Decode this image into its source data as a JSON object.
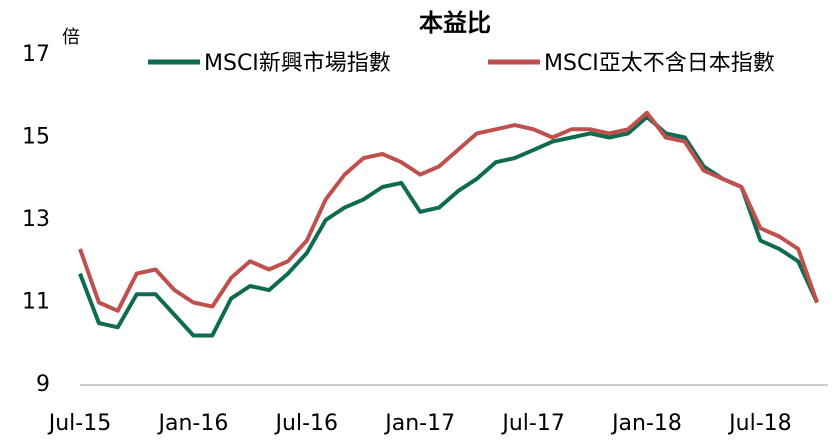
{
  "chart_data": {
    "type": "line",
    "title": "本益比",
    "y_label": "倍",
    "categories": [
      "Jul-15",
      null,
      null,
      null,
      null,
      null,
      "Jan-16",
      null,
      null,
      null,
      null,
      null,
      "Jul-16",
      null,
      null,
      null,
      null,
      null,
      "Jan-17",
      null,
      null,
      null,
      null,
      null,
      "Jul-17",
      null,
      null,
      null,
      null,
      null,
      "Jan-18",
      null,
      null,
      null,
      null,
      null,
      "Jul-18",
      null,
      null,
      null
    ],
    "series": [
      {
        "name": "MSCI新興市場指數",
        "color": "#0f6b4f",
        "values": [
          11.7,
          10.5,
          10.4,
          11.2,
          11.2,
          10.7,
          10.2,
          10.2,
          11.1,
          11.4,
          11.3,
          11.7,
          12.2,
          13.0,
          13.3,
          13.5,
          13.8,
          13.9,
          13.2,
          13.3,
          13.7,
          14.0,
          14.4,
          14.5,
          14.7,
          14.9,
          15.0,
          15.1,
          15.0,
          15.1,
          15.5,
          15.1,
          15.0,
          14.3,
          14.0,
          13.8,
          12.5,
          12.3,
          12.0,
          11.0
        ]
      },
      {
        "name": "MSCI亞太不含日本指數",
        "color": "#c0504d",
        "values": [
          12.3,
          11.0,
          10.8,
          11.7,
          11.8,
          11.3,
          11.0,
          10.9,
          11.6,
          12.0,
          11.8,
          12.0,
          12.5,
          13.5,
          14.1,
          14.5,
          14.6,
          14.4,
          14.1,
          14.3,
          14.7,
          15.1,
          15.2,
          15.3,
          15.2,
          15.0,
          15.2,
          15.2,
          15.1,
          15.2,
          15.6,
          15.0,
          14.9,
          14.2,
          14.0,
          13.8,
          12.8,
          12.6,
          12.3,
          11.0
        ]
      }
    ],
    "ylim": [
      9,
      17
    ],
    "yticks": [
      9,
      11,
      13,
      15,
      17
    ],
    "legend": "top"
  }
}
